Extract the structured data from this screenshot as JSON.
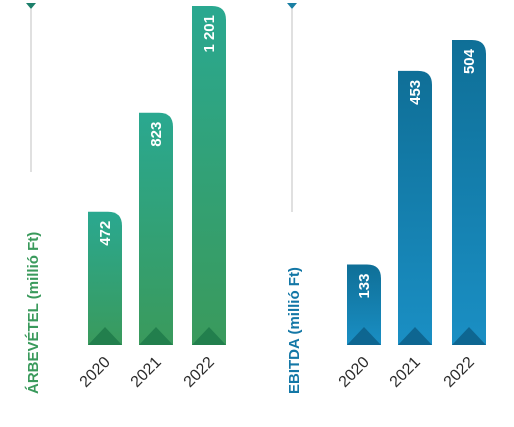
{
  "chart_data": [
    {
      "type": "bar",
      "categories": [
        "2020",
        "2021",
        "2022"
      ],
      "values": [
        472,
        823,
        1201
      ],
      "value_labels": [
        "472",
        "823",
        "1 201"
      ],
      "ylabel": "ÁRBEVÉTEL (millió Ft)",
      "ylim": [
        0,
        1201
      ],
      "colors": {
        "label": "#3a9a5c",
        "bar_top": "#2aa890",
        "bar_bottom": "#3a9a5c",
        "accent": "#1e7a4a",
        "marker": "#1c7f6a"
      }
    },
    {
      "type": "bar",
      "categories": [
        "2020",
        "2021",
        "2022"
      ],
      "values": [
        133,
        453,
        504
      ],
      "value_labels": [
        "133",
        "453",
        "504"
      ],
      "ylabel": "EBITDA (millió Ft)",
      "ylim": [
        0,
        504
      ],
      "colors": {
        "label": "#1377a6",
        "bar_top": "#0f6f97",
        "bar_bottom": "#1a8fc4",
        "accent": "#0d5f88",
        "marker": "#1a7fa3"
      }
    }
  ]
}
